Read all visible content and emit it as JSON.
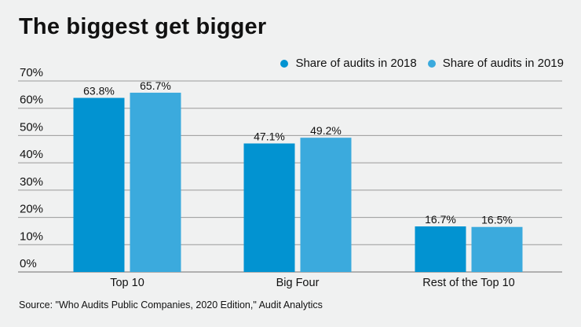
{
  "chart_data": {
    "type": "bar",
    "title": "The biggest get bigger",
    "categories": [
      "Top 10",
      "Big Four",
      "Rest of the Top 10"
    ],
    "series": [
      {
        "name": "Share of audits in 2018",
        "color": "#0293d1",
        "values": [
          63.8,
          47.1,
          16.7
        ],
        "labels": [
          "63.8%",
          "47.1%",
          "16.7%"
        ]
      },
      {
        "name": "Share of audits in 2019",
        "color": "#3baadd",
        "values": [
          65.7,
          49.2,
          16.5
        ],
        "labels": [
          "65.7%",
          "49.2%",
          "16.5%"
        ]
      }
    ],
    "xlabel": "",
    "ylabel": "",
    "ylim": [
      0,
      70
    ],
    "yticks": [
      0,
      10,
      20,
      30,
      40,
      50,
      60,
      70
    ],
    "ytick_labels": [
      "0%",
      "10%",
      "20%",
      "30%",
      "40%",
      "50%",
      "60%",
      "70%"
    ],
    "grid": true,
    "legend_position": "top-right",
    "source": "Source: \"Who Audits Public Companies, 2020 Edition,\" Audit Analytics"
  },
  "gridline_color": "#9a9a9a"
}
